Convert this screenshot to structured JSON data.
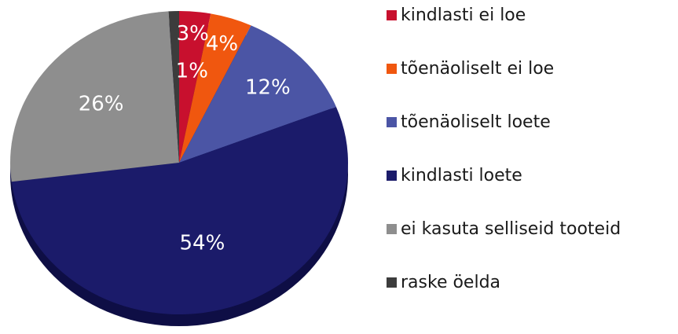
{
  "chart_data": {
    "type": "pie",
    "categories": [
      "kindlasti ei loe",
      "tõenäoliselt ei loe",
      "tõenäoliselt loete",
      "kindlasti loete",
      "ei kasuta selliseid tooteid",
      "raske öelda"
    ],
    "values": [
      3,
      4,
      12,
      54,
      26,
      1
    ],
    "value_labels": [
      "3%",
      "4%",
      "12%",
      "54%",
      "26%",
      "1%"
    ],
    "colors": [
      "#c8102e",
      "#f0570f",
      "#4b55a5",
      "#1b1b6a",
      "#8e8e8e",
      "#3c3c3c"
    ]
  }
}
